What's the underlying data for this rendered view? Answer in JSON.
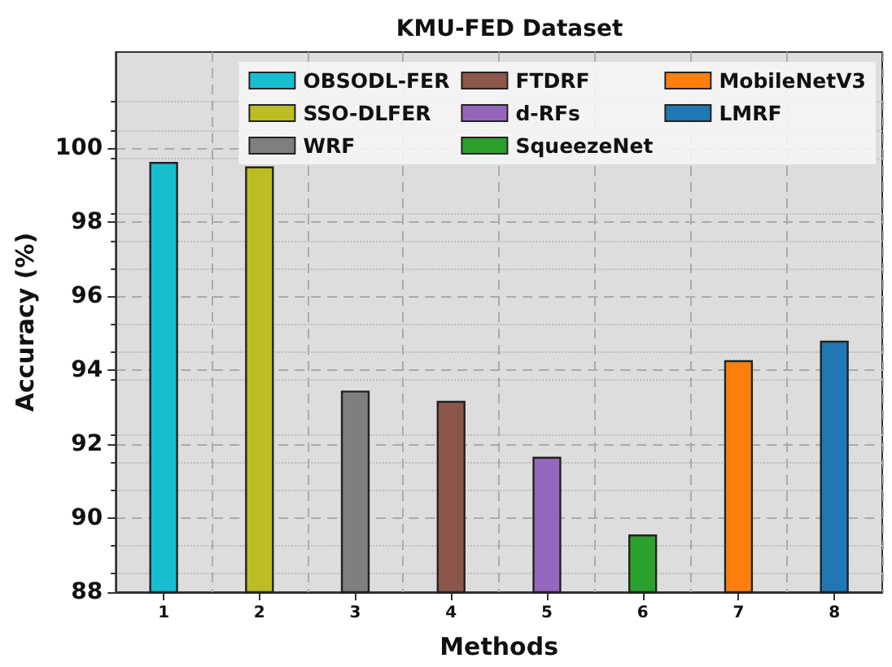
{
  "chart_data": {
    "type": "bar",
    "title": "KMU-FED Dataset",
    "xlabel": "Methods",
    "ylabel": "Accuracy (%)",
    "categories": [
      "1",
      "2",
      "3",
      "4",
      "5",
      "6",
      "7",
      "8"
    ],
    "series": [
      {
        "name": "OBSODL-FER",
        "color": "#17becf",
        "values": [
          99.63,
          null,
          null,
          null,
          null,
          null,
          null,
          null
        ]
      },
      {
        "name": "SSO-DLFER",
        "color": "#bcbd22",
        "values": [
          null,
          99.51,
          null,
          null,
          null,
          null,
          null,
          null
        ]
      },
      {
        "name": "WRF",
        "color": "#7f7f7f",
        "values": [
          null,
          null,
          93.45,
          null,
          null,
          null,
          null,
          null
        ]
      },
      {
        "name": "FTDRF",
        "color": "#8c564b",
        "values": [
          null,
          null,
          null,
          93.17,
          null,
          null,
          null,
          null
        ]
      },
      {
        "name": "d-RFs",
        "color": "#9467bd",
        "values": [
          null,
          null,
          null,
          null,
          91.66,
          null,
          null,
          null
        ]
      },
      {
        "name": "SqueezeNet",
        "color": "#2ca02c",
        "values": [
          null,
          null,
          null,
          null,
          null,
          89.56,
          null,
          null
        ]
      },
      {
        "name": "MobileNetV3",
        "color": "#ff7f0e",
        "values": [
          null,
          null,
          null,
          null,
          null,
          null,
          94.27,
          null
        ]
      },
      {
        "name": "LMRF",
        "color": "#1f77b4",
        "values": [
          null,
          null,
          null,
          null,
          null,
          null,
          null,
          94.8
        ]
      }
    ],
    "ylim": [
      88,
      102.6
    ],
    "yticks": [
      88,
      90,
      92,
      94,
      96,
      98,
      100
    ],
    "grid": true,
    "legend": "top right"
  }
}
